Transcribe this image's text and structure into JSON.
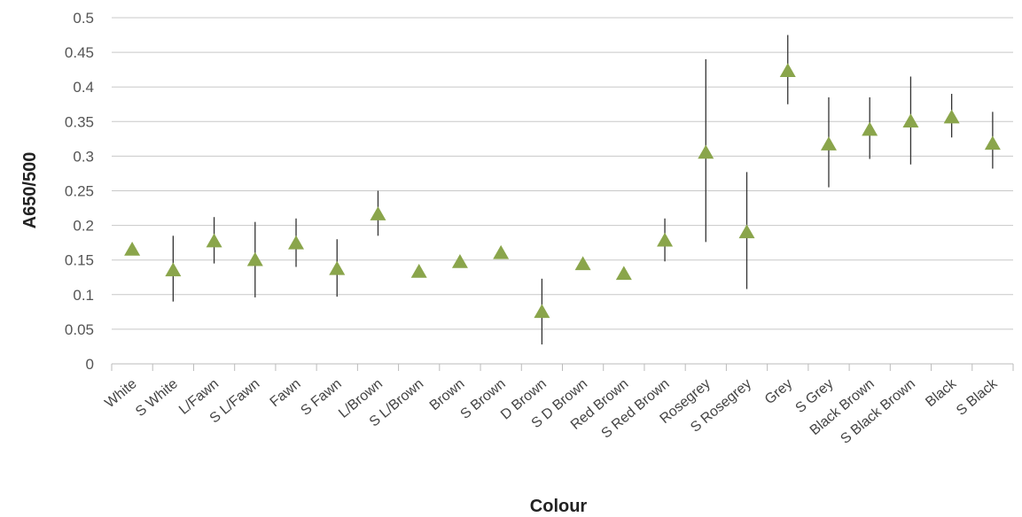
{
  "chart_data": {
    "type": "scatter",
    "xlabel": "Colour",
    "ylabel": "A650/500",
    "ylim": [
      0,
      0.5
    ],
    "yticks": [
      "0",
      "0.05",
      "0.1",
      "0.15",
      "0.2",
      "0.25",
      "0.3",
      "0.35",
      "0.4",
      "0.45",
      "0.5"
    ],
    "grid": true,
    "marker": "triangle",
    "marker_color": "#8aa54b",
    "error_color": "#333333",
    "categories": [
      "White",
      "S White",
      "L/Fawn",
      "S L/Fawn",
      "Fawn",
      "S Fawn",
      "L/Brown",
      "S L/Brown",
      "Brown",
      "S Brown",
      "D Brown",
      "S D Brown",
      "Red Brown",
      "S Red Brown",
      "Rosegrey",
      "S Rosegrey",
      "Grey",
      "S Grey",
      "Black Brown",
      "S Black Brown",
      "Black",
      "S Black"
    ],
    "values": [
      0.165,
      0.135,
      0.177,
      0.15,
      0.174,
      0.137,
      0.216,
      0.133,
      0.147,
      0.16,
      0.075,
      0.144,
      0.13,
      0.178,
      0.305,
      0.19,
      0.423,
      0.317,
      0.338,
      0.35,
      0.356,
      0.318
    ],
    "error_low": [
      null,
      0.09,
      0.145,
      0.096,
      0.14,
      0.097,
      0.185,
      null,
      null,
      null,
      0.028,
      null,
      null,
      0.148,
      0.176,
      0.108,
      0.375,
      0.255,
      0.296,
      0.288,
      0.327,
      0.282
    ],
    "error_high": [
      null,
      0.185,
      0.212,
      0.205,
      0.21,
      0.18,
      0.25,
      null,
      null,
      null,
      0.123,
      null,
      null,
      0.21,
      0.44,
      0.277,
      0.475,
      0.385,
      0.385,
      0.415,
      0.39,
      0.364
    ]
  }
}
